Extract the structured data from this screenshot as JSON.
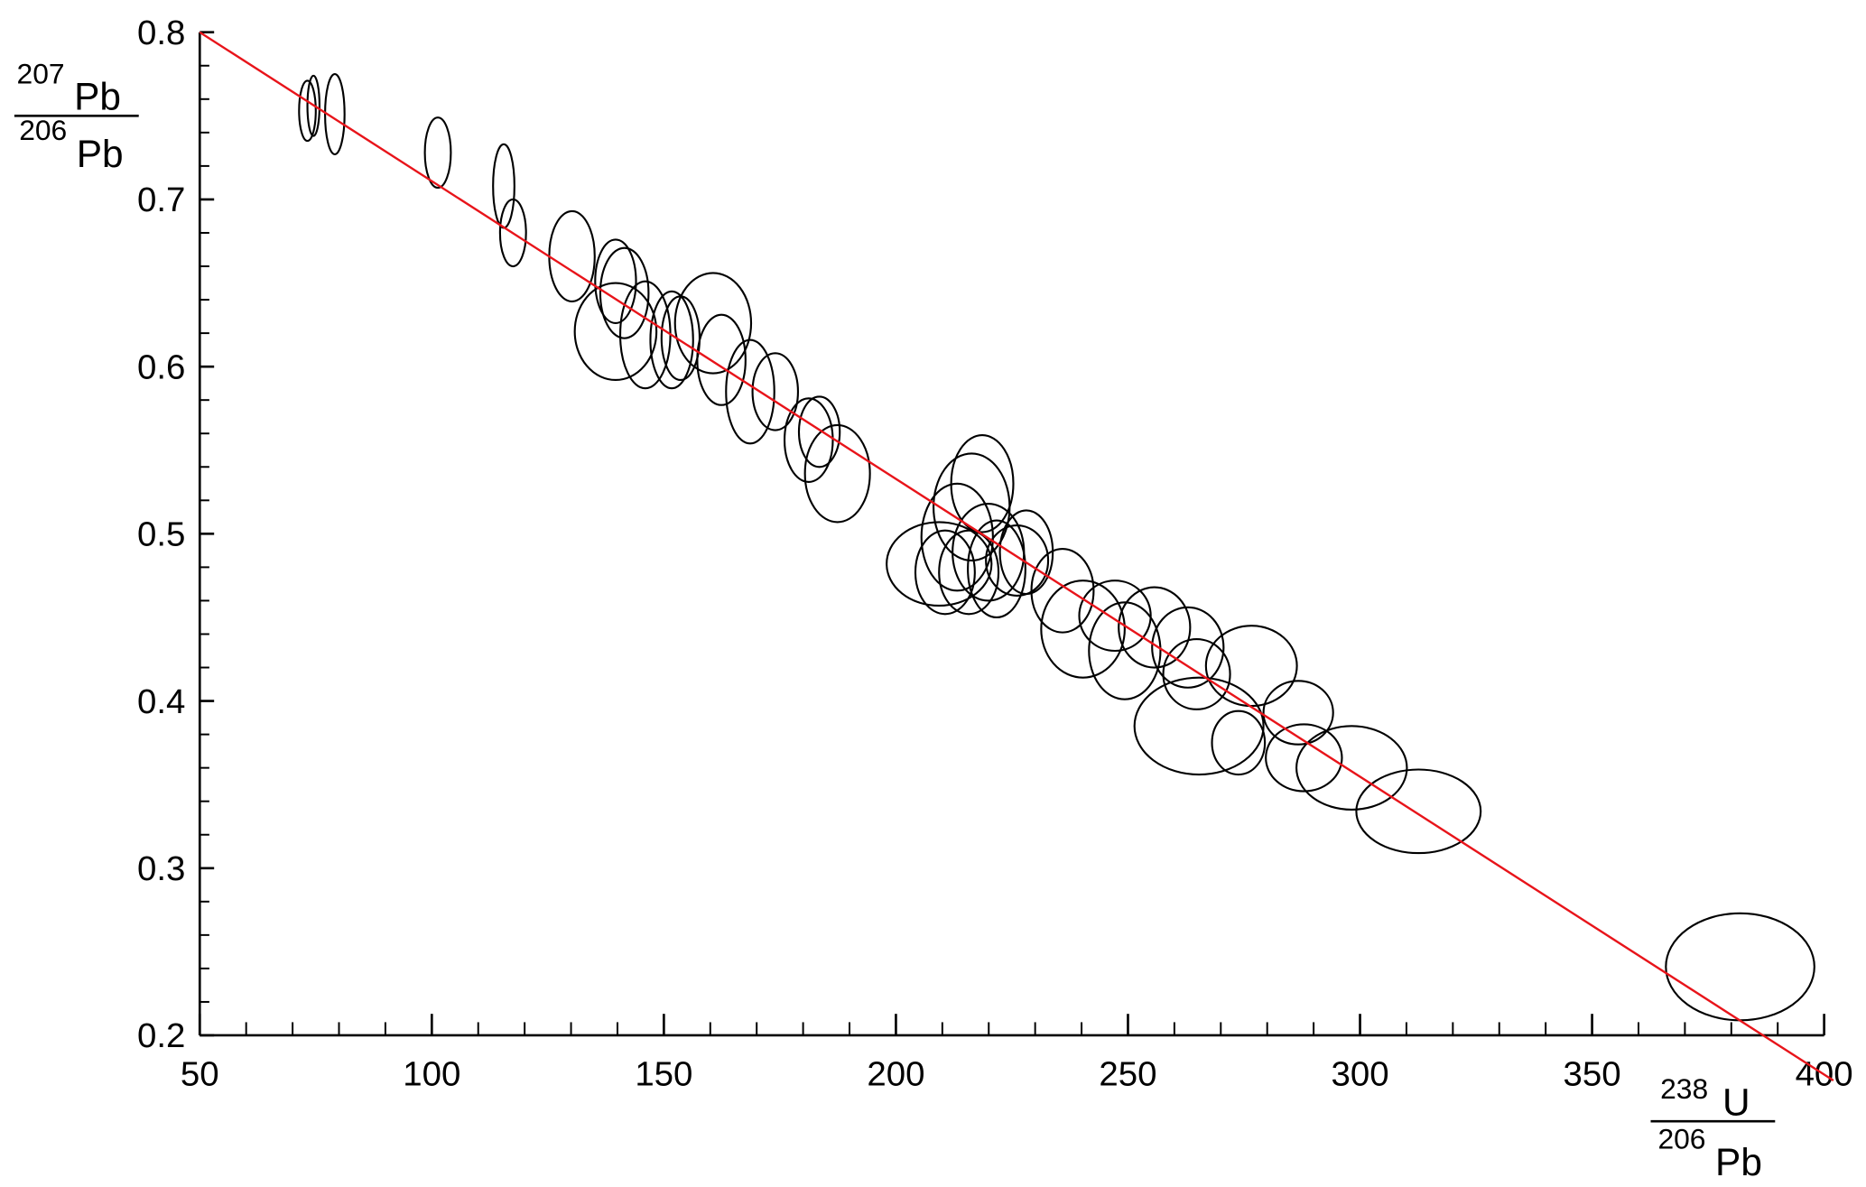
{
  "chart_data": {
    "type": "scatter",
    "marker": "ellipse",
    "color": "#000000",
    "x_label": {
      "numerator": {
        "mass": "238",
        "element": "U"
      },
      "denominator": {
        "mass": "206",
        "element": "Pb"
      }
    },
    "y_label": {
      "numerator": {
        "mass": "207",
        "element": "Pb"
      },
      "denominator": {
        "mass": "206",
        "element": "Pb"
      }
    },
    "x": [
      73.2,
      74.5,
      79.1,
      101.3,
      115.5,
      117.5,
      130.2,
      139.6,
      141.5,
      139.6,
      146,
      151.7,
      153.6,
      160.6,
      162.4,
      168.6,
      174,
      181.2,
      183.5,
      187.4,
      209.3,
      213.2,
      216.3,
      218.6,
      210.6,
      215.7,
      219.9,
      221.7,
      226.1,
      228.1,
      235.9,
      240.3,
      247.2,
      249.3,
      255.7,
      262.9,
      264.8,
      276.6,
      265.3,
      273.8,
      286.7,
      287.9,
      298.2,
      312.6,
      381.9
    ],
    "y": [
      0.753,
      0.756,
      0.751,
      0.728,
      0.708,
      0.68,
      0.666,
      0.651,
      0.644,
      0.621,
      0.619,
      0.616,
      0.617,
      0.626,
      0.604,
      0.585,
      0.585,
      0.556,
      0.561,
      0.536,
      0.482,
      0.498,
      0.516,
      0.53,
      0.477,
      0.477,
      0.489,
      0.479,
      0.484,
      0.489,
      0.466,
      0.443,
      0.451,
      0.43,
      0.444,
      0.432,
      0.416,
      0.421,
      0.385,
      0.375,
      0.393,
      0.366,
      0.36,
      0.334,
      0.241
    ],
    "x_error": [
      1.8,
      1.3,
      2.1,
      2.8,
      2.3,
      2.8,
      4.9,
      4.4,
      5.2,
      8.8,
      5.4,
      4.6,
      4.1,
      8.2,
      5.2,
      5.2,
      4.9,
      5.2,
      4.4,
      7,
      11.3,
      7.7,
      8.2,
      6.7,
      6.4,
      6.4,
      7.7,
      6.2,
      6.7,
      5.7,
      6.7,
      9,
      7.7,
      7.7,
      7.7,
      7.7,
      7.2,
      9.8,
      13.9,
      5.7,
      7.5,
      8.2,
      11.9,
      13.4,
      16
    ],
    "y_error": [
      0.018,
      0.018,
      0.024,
      0.021,
      0.025,
      0.02,
      0.027,
      0.025,
      0.027,
      0.029,
      0.032,
      0.029,
      0.025,
      0.03,
      0.027,
      0.031,
      0.023,
      0.025,
      0.021,
      0.029,
      0.025,
      0.032,
      0.032,
      0.029,
      0.025,
      0.025,
      0.029,
      0.029,
      0.021,
      0.025,
      0.025,
      0.029,
      0.021,
      0.029,
      0.024,
      0.024,
      0.021,
      0.024,
      0.029,
      0.019,
      0.019,
      0.02,
      0.025,
      0.025,
      0.032
    ],
    "fit_line": {
      "x": [
        50,
        402
      ],
      "y": [
        0.8,
        0.173
      ],
      "color": "#e8141a"
    },
    "xlim": [
      50,
      400
    ],
    "ylim": [
      0.2,
      0.8
    ],
    "xticks": [
      50,
      100,
      150,
      200,
      250,
      300,
      350,
      400
    ],
    "yticks": [
      0.2,
      0.3,
      0.4,
      0.5,
      0.6,
      0.7,
      0.8
    ],
    "xminorticks": [
      60,
      70,
      80,
      90,
      110,
      120,
      130,
      140,
      160,
      170,
      180,
      190,
      210,
      220,
      230,
      240,
      260,
      270,
      280,
      290,
      310,
      320,
      330,
      340,
      360,
      370,
      380,
      390
    ],
    "yminorticks": [
      0.22,
      0.24,
      0.26,
      0.28,
      0.32,
      0.34,
      0.36,
      0.38,
      0.42,
      0.44,
      0.46,
      0.48,
      0.52,
      0.54,
      0.56,
      0.58,
      0.62,
      0.64,
      0.66,
      0.68,
      0.72,
      0.74,
      0.76,
      0.78
    ]
  }
}
